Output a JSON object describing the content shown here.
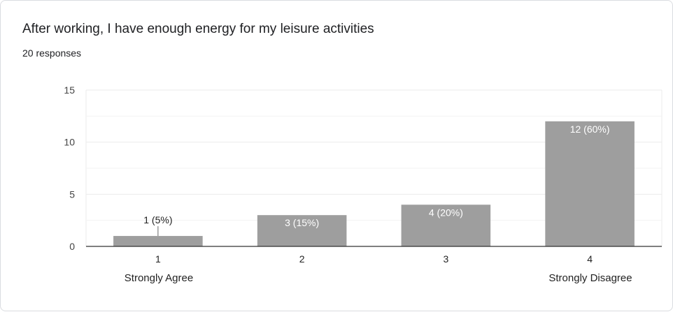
{
  "title": "After working, I have enough energy for my leisure activities",
  "responses_text": "20 responses",
  "scale_labels": {
    "low": "Strongly Agree",
    "high": "Strongly Disagree"
  },
  "colors": {
    "bar": "#9e9e9e",
    "grid": "#ebebeb",
    "axis": "#333333",
    "label_inside": "#ffffff",
    "label_outside": "#222222"
  },
  "chart_data": {
    "type": "bar",
    "categories": [
      "1",
      "2",
      "3",
      "4"
    ],
    "values": [
      1,
      3,
      4,
      12
    ],
    "data_labels": [
      "1 (5%)",
      "3 (15%)",
      "4 (20%)",
      "12 (60%)"
    ],
    "yticks": [
      "0",
      "5",
      "10",
      "15"
    ],
    "ylim": [
      0,
      15
    ],
    "grid": true,
    "legend": "none"
  }
}
